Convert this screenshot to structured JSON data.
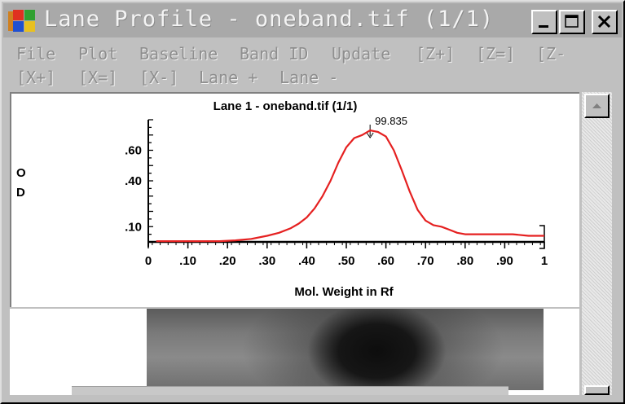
{
  "window": {
    "title": "Lane Profile - oneband.tif (1/1)",
    "controls": {
      "minimize": "minimize",
      "maximize": "maximize",
      "close": "close"
    }
  },
  "menu": {
    "row1": [
      "File",
      "Plot",
      "Baseline",
      "Band ID",
      "Update",
      "[Z+]",
      "[Z=]",
      "[Z-"
    ],
    "row2": [
      "[X+]",
      "[X=]",
      "[X-]",
      "Lane +",
      "Lane -"
    ]
  },
  "plot": {
    "title": "Lane 1 - oneband.tif (1/1)",
    "peak_label": "99.835",
    "y_axis_label": [
      "O",
      "D"
    ],
    "x_axis_label": "Mol. Weight in Rf"
  },
  "chart_data": {
    "type": "line",
    "title": "Lane 1 - oneband.tif (1/1)",
    "xlabel": "Mol. Weight in Rf",
    "ylabel": "OD",
    "xlim": [
      0,
      1
    ],
    "ylim": [
      0,
      0.8
    ],
    "x_tick_labels": [
      "0",
      ".10",
      ".20",
      ".30",
      ".40",
      ".50",
      ".60",
      ".70",
      ".80",
      ".90",
      "1"
    ],
    "y_tick_labels": [
      ".60",
      ".40",
      ".10"
    ],
    "y_tick_values": [
      0.6,
      0.4,
      0.1
    ],
    "peak_annotation": {
      "x": 0.56,
      "label": "99.835"
    },
    "series_color": "#e52020",
    "series": [
      {
        "x": [
          0.02,
          0.06,
          0.1,
          0.14,
          0.18,
          0.22,
          0.26,
          0.3,
          0.33,
          0.36,
          0.38,
          0.4,
          0.42,
          0.44,
          0.46,
          0.48,
          0.5,
          0.52,
          0.54,
          0.56,
          0.58,
          0.6,
          0.62,
          0.64,
          0.66,
          0.68,
          0.7,
          0.72,
          0.74,
          0.76,
          0.78,
          0.8,
          0.84,
          0.88,
          0.92,
          0.96,
          1.0
        ],
        "y": [
          0.005,
          0.005,
          0.005,
          0.005,
          0.005,
          0.01,
          0.02,
          0.04,
          0.06,
          0.09,
          0.12,
          0.16,
          0.22,
          0.3,
          0.4,
          0.52,
          0.62,
          0.68,
          0.7,
          0.73,
          0.72,
          0.69,
          0.6,
          0.47,
          0.33,
          0.21,
          0.14,
          0.11,
          0.1,
          0.08,
          0.06,
          0.05,
          0.05,
          0.05,
          0.05,
          0.04,
          0.04
        ]
      }
    ]
  }
}
